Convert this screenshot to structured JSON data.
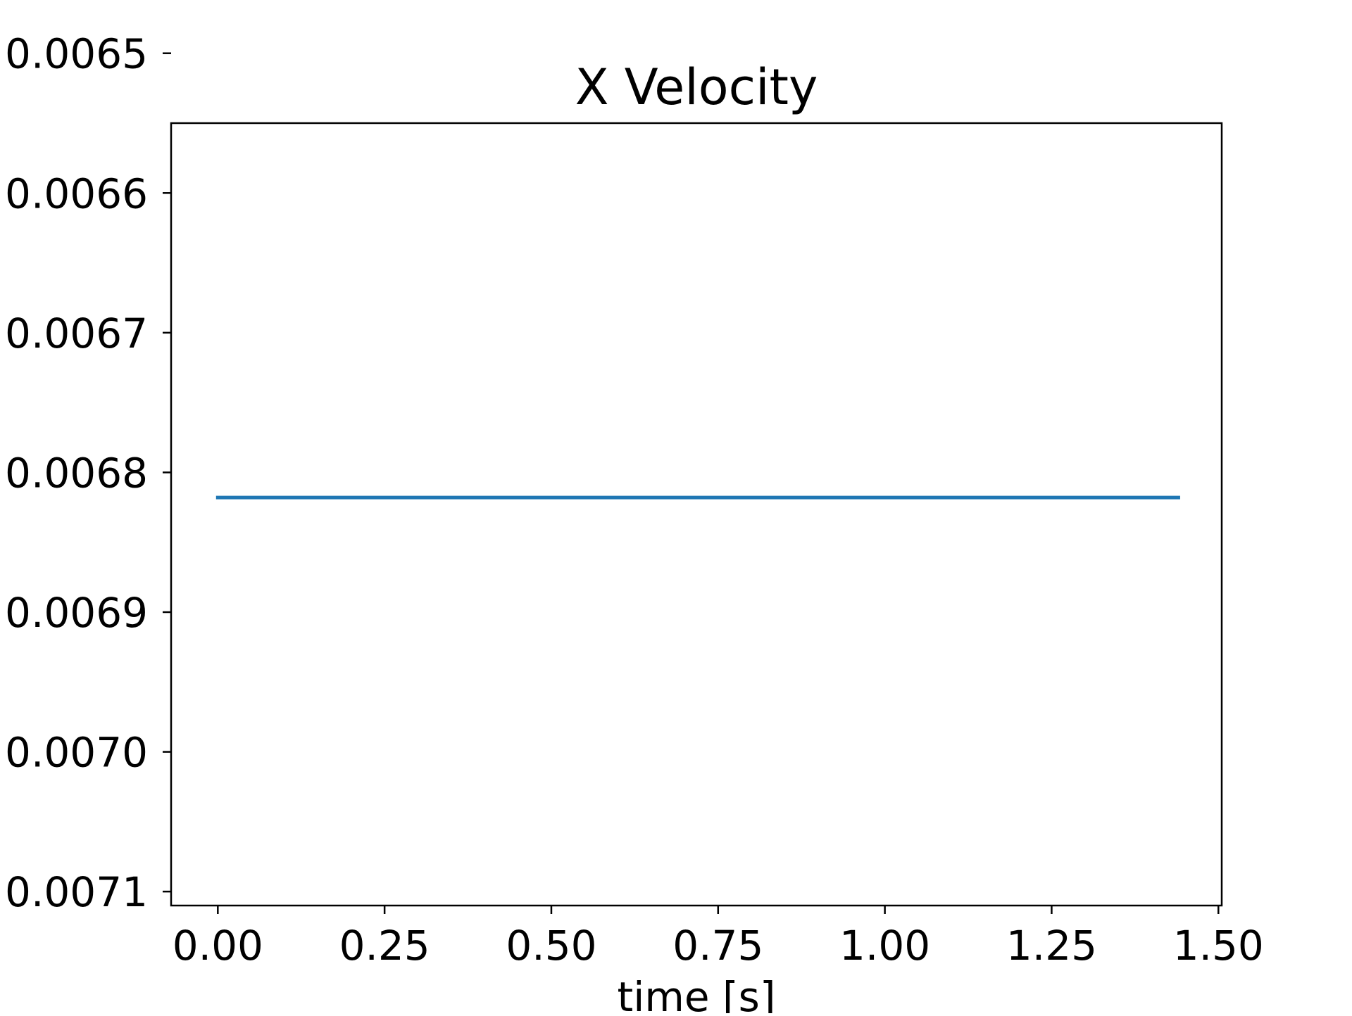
{
  "chart_data": {
    "type": "line",
    "title": "X Velocity",
    "xlabel": "time [s]",
    "ylabel": "",
    "xlim": [
      -0.07,
      1.505
    ],
    "ylim": [
      0.00655,
      0.00711
    ],
    "y_inverted": false,
    "x_ticks": [
      0.0,
      0.25,
      0.5,
      0.75,
      1.0,
      1.25,
      1.5
    ],
    "x_tick_labels": [
      "0.00",
      "0.25",
      "0.50",
      "0.75",
      "1.00",
      "1.25",
      "1.50"
    ],
    "y_ticks": [
      0.0065,
      0.0066,
      0.0067,
      0.0068,
      0.0069,
      0.007,
      0.0071
    ],
    "y_tick_labels": [
      "0.0065",
      "0.0066",
      "0.0067",
      "0.0068",
      "0.0069",
      "0.0070",
      "0.0071"
    ],
    "grid": false,
    "series": [
      {
        "color": "#1f77b4",
        "x": [
          0.0,
          1.44
        ],
        "y": [
          0.006818,
          0.006818
        ]
      }
    ]
  }
}
